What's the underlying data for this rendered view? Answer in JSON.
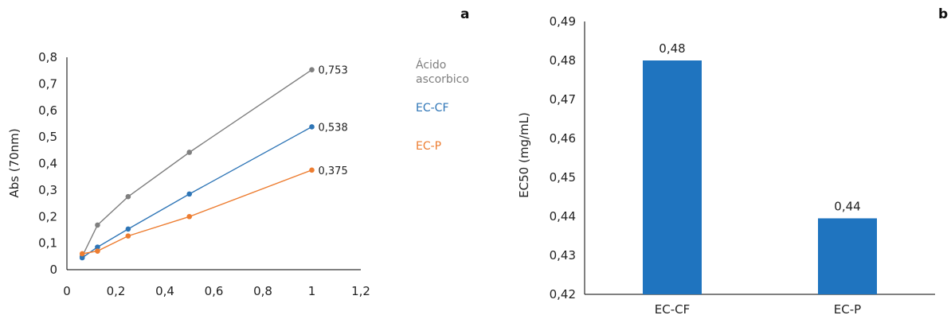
{
  "panels": {
    "a": "a",
    "b": "b"
  },
  "chart_data": [
    {
      "type": "line",
      "ylabel": "Abs (70nm)",
      "xlim": [
        0,
        1.2
      ],
      "ylim": [
        0,
        0.8
      ],
      "xticks": [
        "0",
        "0,2",
        "0,4",
        "0,6",
        "0,8",
        "1",
        "1,2"
      ],
      "yticks": [
        "0",
        "0,1",
        "0,2",
        "0,3",
        "0,4",
        "0,5",
        "0,6",
        "0,7",
        "0,8"
      ],
      "legend_position": "right",
      "series": [
        {
          "name": "Ácido ascorbico",
          "color": "#7f7f7f",
          "x": [
            0.0625,
            0.125,
            0.25,
            0.5,
            1.0
          ],
          "y": [
            0.05,
            0.168,
            0.275,
            0.442,
            0.753
          ],
          "end_label": "0,753"
        },
        {
          "name": "EC-CF",
          "color": "#2e75b6",
          "x": [
            0.0625,
            0.125,
            0.25,
            0.5,
            1.0
          ],
          "y": [
            0.045,
            0.085,
            0.153,
            0.285,
            0.538
          ],
          "end_label": "0,538"
        },
        {
          "name": "EC-P",
          "color": "#ed7d31",
          "x": [
            0.0625,
            0.125,
            0.25,
            0.5,
            1.0
          ],
          "y": [
            0.06,
            0.07,
            0.127,
            0.2,
            0.375
          ],
          "end_label": "0,375"
        }
      ]
    },
    {
      "type": "bar",
      "ylabel": "EC50 (mg/mL)",
      "ylim": [
        0.42,
        0.49
      ],
      "yticks": [
        "0,42",
        "0,43",
        "0,44",
        "0,45",
        "0,46",
        "0,47",
        "0,48",
        "0,49"
      ],
      "categories": [
        "EC-CF",
        "EC-P"
      ],
      "values": [
        0.48,
        0.4395
      ],
      "data_labels": [
        "0,48",
        "0,44"
      ],
      "color": "#1f74bf"
    }
  ]
}
